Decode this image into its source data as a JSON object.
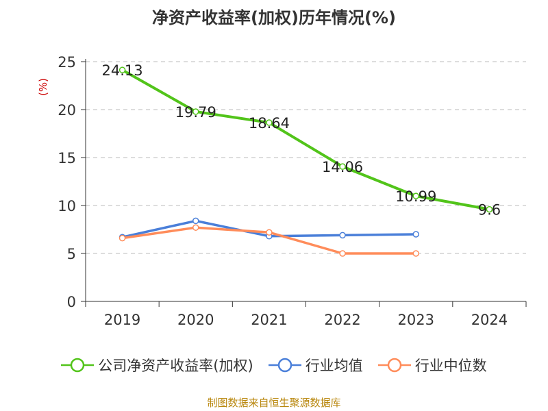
{
  "title": "净资产收益率(加权)历年情况(%)",
  "source": "制图数据来自恒生聚源数据库",
  "colors": {
    "roe": "#52c41a",
    "industry_avg": "#4a7fd9",
    "industry_median": "#ff8c5a"
  },
  "chart_data": {
    "type": "line",
    "title": "净资产收益率(加权)历年情况(%)",
    "ylabel": "(%)",
    "xlabel": "",
    "categories": [
      "2019",
      "2020",
      "2021",
      "2022",
      "2023",
      "2024"
    ],
    "ylim": [
      0,
      25
    ],
    "yticks": [
      0,
      5,
      10,
      15,
      20,
      25
    ],
    "grid": true,
    "legend_position": "bottom",
    "series": [
      {
        "name": "公司净资产收益率(加权)",
        "values": [
          24.13,
          19.79,
          18.64,
          14.06,
          10.99,
          9.6
        ],
        "labels": [
          "24.13",
          "19.79",
          "18.64",
          "14.06",
          "10.99",
          "9.6"
        ],
        "color": "#52c41a"
      },
      {
        "name": "行业均值",
        "values": [
          6.7,
          8.4,
          6.8,
          6.9,
          7.0,
          null
        ],
        "color": "#4a7fd9"
      },
      {
        "name": "行业中位数",
        "values": [
          6.6,
          7.7,
          7.2,
          5.0,
          5.0,
          null
        ],
        "color": "#ff8c5a"
      }
    ]
  }
}
